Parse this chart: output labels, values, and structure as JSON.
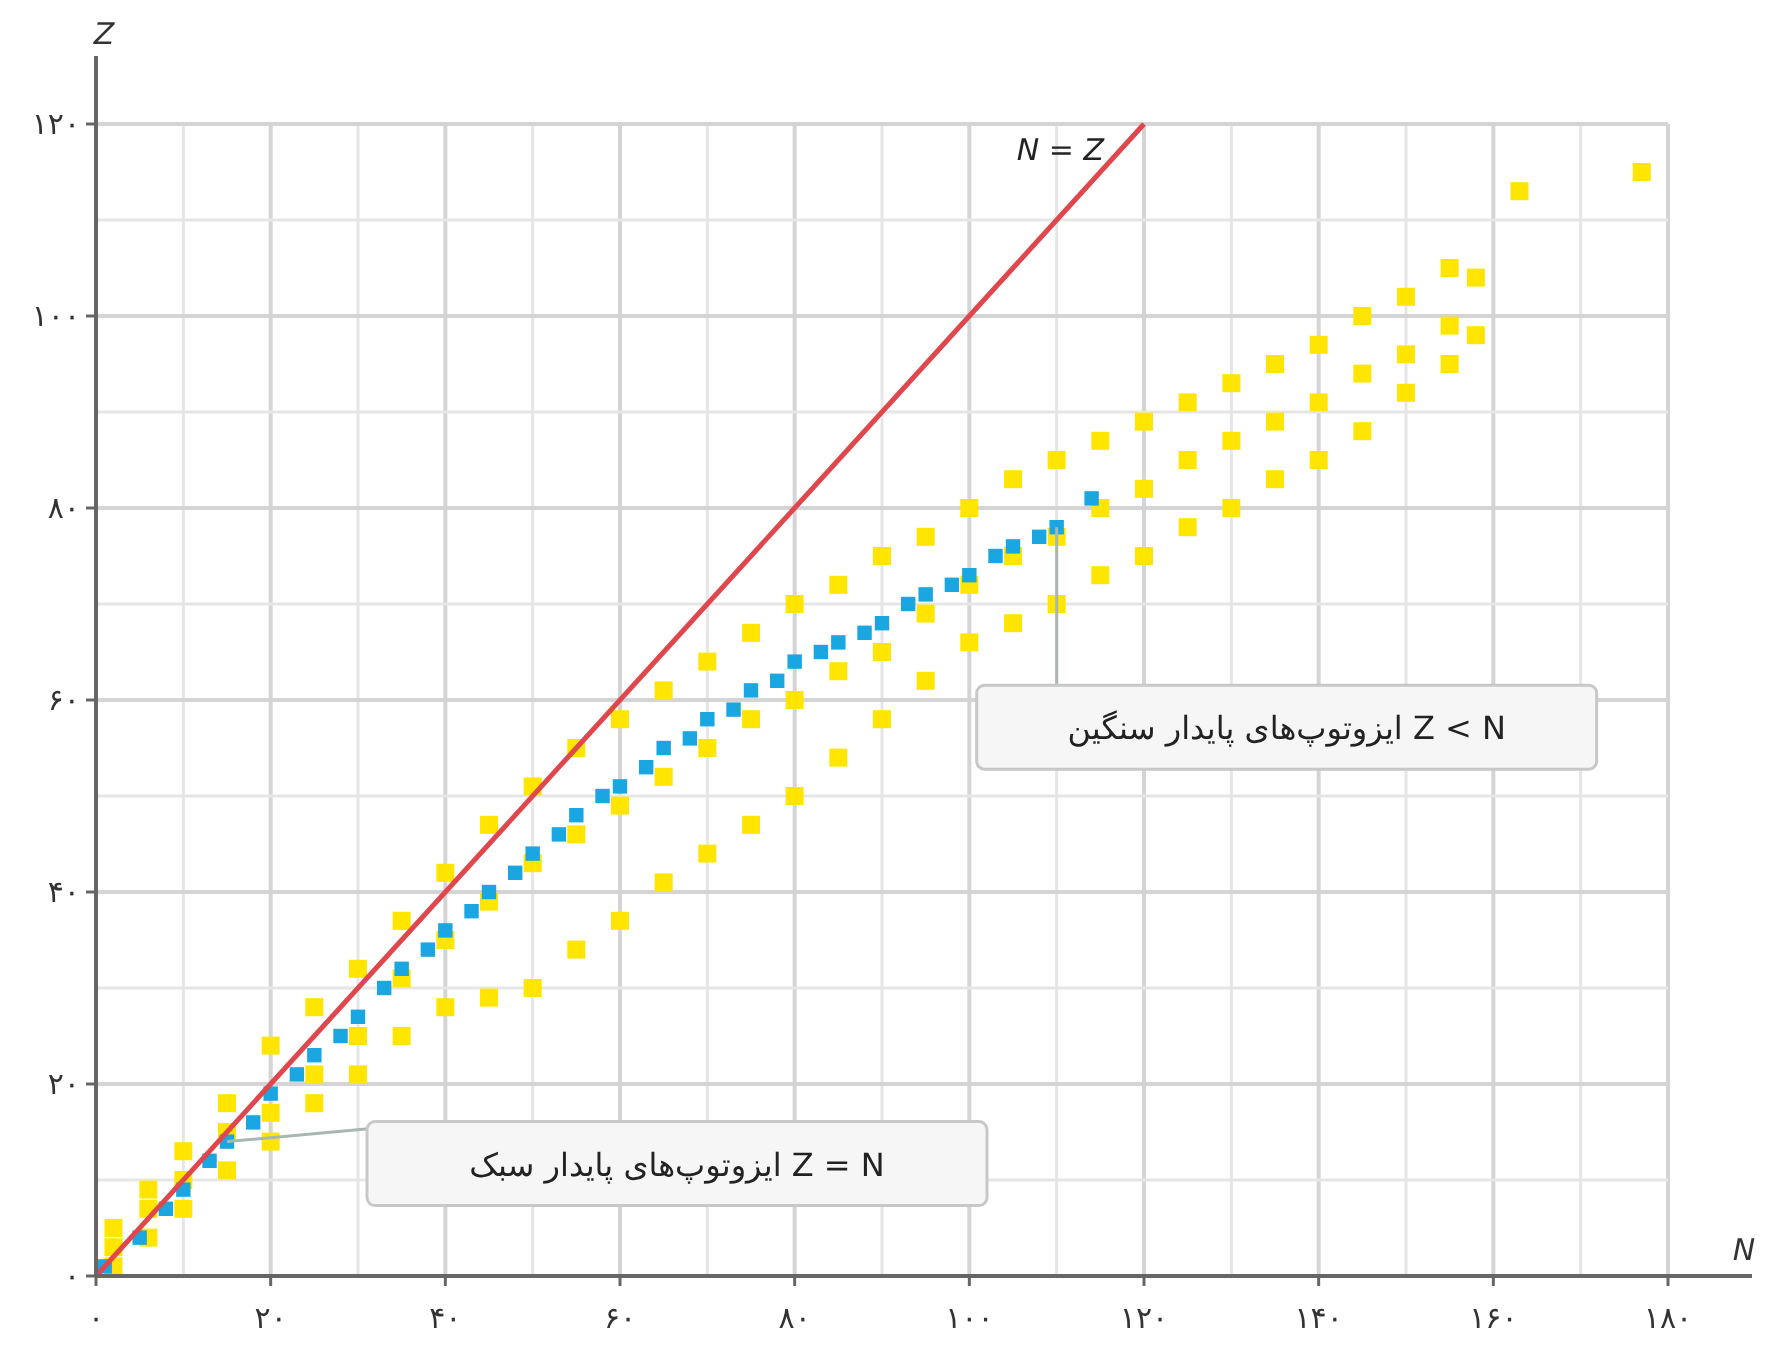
{
  "chart_data": {
    "type": "scatter",
    "xlabel": "N",
    "ylabel": "Z",
    "xlim": [
      0,
      180
    ],
    "ylim": [
      0,
      120
    ],
    "xticks": [
      {
        "value": 0,
        "label": "۰"
      },
      {
        "value": 20,
        "label": "۲۰"
      },
      {
        "value": 40,
        "label": "۴۰"
      },
      {
        "value": 60,
        "label": "۶۰"
      },
      {
        "value": 80,
        "label": "۸۰"
      },
      {
        "value": 100,
        "label": "۱۰۰"
      },
      {
        "value": 120,
        "label": "۱۲۰"
      },
      {
        "value": 140,
        "label": "۱۴۰"
      },
      {
        "value": 160,
        "label": "۱۶۰"
      },
      {
        "value": 180,
        "label": "۱۸۰"
      }
    ],
    "yticks": [
      {
        "value": 0,
        "label": "۰"
      },
      {
        "value": 20,
        "label": "۲۰"
      },
      {
        "value": 40,
        "label": "۴۰"
      },
      {
        "value": 60,
        "label": "۶۰"
      },
      {
        "value": 80,
        "label": "۸۰"
      },
      {
        "value": 100,
        "label": "۱۰۰"
      },
      {
        "value": 120,
        "label": "۱۲۰"
      }
    ],
    "grid": true,
    "marker": "square",
    "series": [
      {
        "color": "#ffe500",
        "x": [
          2,
          2,
          2,
          6,
          6,
          6,
          10,
          10,
          10,
          15,
          15,
          15,
          20,
          20,
          20,
          25,
          25,
          25,
          30,
          30,
          30,
          35,
          35,
          35,
          40,
          40,
          40,
          45,
          45,
          45,
          50,
          50,
          50,
          55,
          55,
          55,
          60,
          60,
          60,
          65,
          65,
          65,
          70,
          70,
          70,
          75,
          75,
          75,
          80,
          80,
          80,
          85,
          85,
          85,
          90,
          90,
          90,
          95,
          95,
          95,
          100,
          100,
          100,
          105,
          105,
          105,
          110,
          110,
          110,
          115,
          115,
          115,
          120,
          120,
          120,
          125,
          125,
          125,
          130,
          130,
          130,
          135,
          135,
          135,
          140,
          140,
          140,
          145,
          145,
          145,
          150,
          150,
          150,
          155,
          155,
          155,
          158,
          158,
          163,
          177
        ],
        "values": [
          1,
          3,
          5,
          4,
          7,
          9,
          7,
          10,
          13,
          11,
          15,
          18,
          14,
          17,
          24,
          18,
          21,
          28,
          21,
          25,
          32,
          25,
          31,
          37,
          28,
          35,
          42,
          29,
          39,
          47,
          30,
          43,
          51,
          34,
          46,
          55,
          37,
          49,
          58,
          41,
          52,
          61,
          44,
          55,
          64,
          47,
          58,
          67,
          50,
          60,
          70,
          54,
          63,
          72,
          58,
          65,
          75,
          62,
          69,
          77,
          66,
          72,
          80,
          68,
          75,
          83,
          70,
          77,
          85,
          73,
          80,
          87,
          75,
          82,
          89,
          78,
          85,
          91,
          80,
          87,
          93,
          83,
          89,
          95,
          85,
          91,
          97,
          88,
          94,
          100,
          92,
          96,
          102,
          95,
          99,
          105,
          98,
          104,
          113,
          115
        ]
      },
      {
        "color": "#1aa6e0",
        "x": [
          1,
          5,
          8,
          10,
          13,
          15,
          18,
          20,
          23,
          25,
          28,
          30,
          33,
          35,
          38,
          40,
          43,
          45,
          48,
          50,
          53,
          55,
          58,
          60,
          63,
          65,
          68,
          70,
          73,
          75,
          78,
          80,
          83,
          85,
          88,
          90,
          93,
          95,
          98,
          100,
          103,
          105,
          108,
          110,
          114
        ],
        "values": [
          1,
          4,
          7,
          9,
          12,
          14,
          16,
          19,
          21,
          23,
          25,
          27,
          30,
          32,
          34,
          36,
          38,
          40,
          42,
          44,
          46,
          48,
          50,
          51,
          53,
          55,
          56,
          58,
          59,
          61,
          62,
          64,
          65,
          66,
          67,
          68,
          70,
          71,
          72,
          73,
          75,
          76,
          77,
          78,
          81
        ]
      },
      {
        "type": "line",
        "marker": "none",
        "color": "#e0474c",
        "x": [
          0,
          120
        ],
        "values": [
          0,
          120
        ]
      }
    ],
    "annotations": [
      "N = Z",
      {
        "text": "Z < N ایزوتوپ‌های پایدار سنگین",
        "x": 110,
        "y": 78
      },
      {
        "text": "Z = N ایزوتوپ‌های پایدار سبک",
        "x": 15,
        "y": 14
      }
    ]
  }
}
